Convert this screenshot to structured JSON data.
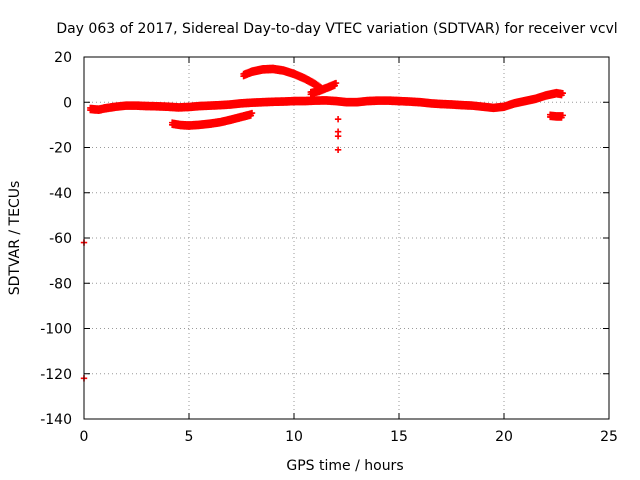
{
  "chart_data": {
    "type": "scatter",
    "title": "Day 063 of 2017, Sidereal Day-to-day VTEC variation (SDTVAR) for receiver vcvl",
    "xlabel": "GPS time / hours",
    "ylabel": "SDTVAR / TECUs",
    "xlim": [
      0,
      25
    ],
    "ylim": [
      -140,
      20
    ],
    "xticks": [
      0,
      5,
      10,
      15,
      20,
      25
    ],
    "yticks": [
      20,
      0,
      -20,
      -40,
      -60,
      -80,
      -100,
      -120,
      -140
    ],
    "grid": true,
    "marker": "+",
    "color": "#ff0000",
    "series": [
      {
        "name": "main-band",
        "points": [
          [
            0.3,
            -2.5
          ],
          [
            0.7,
            -2.8
          ],
          [
            1.0,
            -2.2
          ],
          [
            1.5,
            -1.5
          ],
          [
            2.0,
            -1.0
          ],
          [
            2.5,
            -1.0
          ],
          [
            3.0,
            -1.2
          ],
          [
            3.5,
            -1.3
          ],
          [
            4.0,
            -1.5
          ],
          [
            4.5,
            -1.8
          ],
          [
            5.0,
            -1.6
          ],
          [
            5.5,
            -1.2
          ],
          [
            6.0,
            -1.0
          ],
          [
            6.5,
            -0.8
          ],
          [
            7.0,
            -0.5
          ],
          [
            7.5,
            0.0
          ],
          [
            8.0,
            0.3
          ],
          [
            8.5,
            0.5
          ],
          [
            9.0,
            0.7
          ],
          [
            9.5,
            0.8
          ],
          [
            10.0,
            1.0
          ],
          [
            10.5,
            1.0
          ],
          [
            11.0,
            1.2
          ],
          [
            11.5,
            1.3
          ],
          [
            12.0,
            1.0
          ],
          [
            12.5,
            0.5
          ],
          [
            13.0,
            0.5
          ],
          [
            13.5,
            1.0
          ],
          [
            14.0,
            1.2
          ],
          [
            14.5,
            1.2
          ],
          [
            15.0,
            1.0
          ],
          [
            15.5,
            0.8
          ],
          [
            16.0,
            0.5
          ],
          [
            16.5,
            0.0
          ],
          [
            17.0,
            -0.3
          ],
          [
            17.5,
            -0.5
          ],
          [
            18.0,
            -0.8
          ],
          [
            18.5,
            -1.0
          ],
          [
            19.0,
            -1.5
          ],
          [
            19.5,
            -2.0
          ],
          [
            20.0,
            -1.5
          ],
          [
            20.5,
            0.0
          ],
          [
            21.0,
            1.0
          ],
          [
            21.5,
            2.0
          ],
          [
            22.0,
            3.5
          ],
          [
            22.5,
            4.5
          ],
          [
            22.8,
            4.0
          ]
        ]
      },
      {
        "name": "lower-arc",
        "points": [
          [
            4.2,
            -9.0
          ],
          [
            4.6,
            -9.6
          ],
          [
            5.0,
            -9.8
          ],
          [
            5.5,
            -9.5
          ],
          [
            6.0,
            -9.0
          ],
          [
            6.5,
            -8.3
          ],
          [
            7.0,
            -7.2
          ],
          [
            7.5,
            -6.0
          ],
          [
            8.0,
            -4.8
          ]
        ]
      },
      {
        "name": "upper-arc",
        "points": [
          [
            7.6,
            12.5
          ],
          [
            8.0,
            14.0
          ],
          [
            8.5,
            15.0
          ],
          [
            9.0,
            15.2
          ],
          [
            9.5,
            14.5
          ],
          [
            10.0,
            13.0
          ],
          [
            10.5,
            11.0
          ],
          [
            11.0,
            8.5
          ],
          [
            11.3,
            6.5
          ]
        ]
      },
      {
        "name": "rising-branch",
        "points": [
          [
            10.8,
            4.5
          ],
          [
            11.2,
            5.5
          ],
          [
            11.6,
            7.0
          ],
          [
            12.0,
            8.5
          ]
        ]
      },
      {
        "name": "late-segment",
        "points": [
          [
            22.2,
            -5.5
          ],
          [
            22.5,
            -5.8
          ],
          [
            22.8,
            -5.8
          ]
        ]
      },
      {
        "name": "scattered-outliers",
        "points": [
          [
            12.1,
            -7.5
          ],
          [
            12.1,
            -13.0
          ],
          [
            12.1,
            -15.0
          ],
          [
            12.1,
            -21.0
          ],
          [
            0.0,
            -62.0
          ],
          [
            0.0,
            -122.0
          ]
        ]
      }
    ]
  }
}
